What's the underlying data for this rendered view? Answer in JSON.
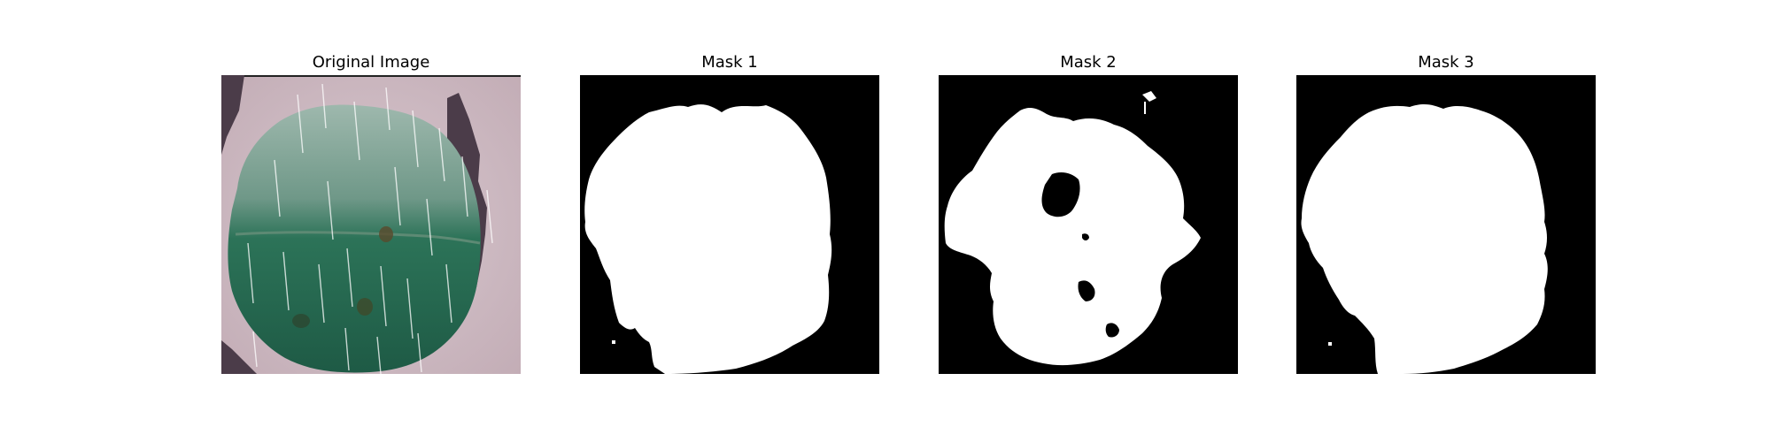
{
  "panels": [
    {
      "title": "Original Image",
      "kind": "photo"
    },
    {
      "title": "Mask 1",
      "kind": "mask"
    },
    {
      "title": "Mask 2",
      "kind": "mask"
    },
    {
      "title": "Mask 3",
      "kind": "mask"
    }
  ],
  "colors": {
    "photo_background": "#c9b4bc",
    "leaf_dark": "#1e5a45",
    "leaf_mid": "#2c7358",
    "leaf_light": "#9eb8ad",
    "leaf_shadow": "#4b3c49",
    "mask_background": "#000000",
    "mask_foreground": "#ffffff"
  }
}
